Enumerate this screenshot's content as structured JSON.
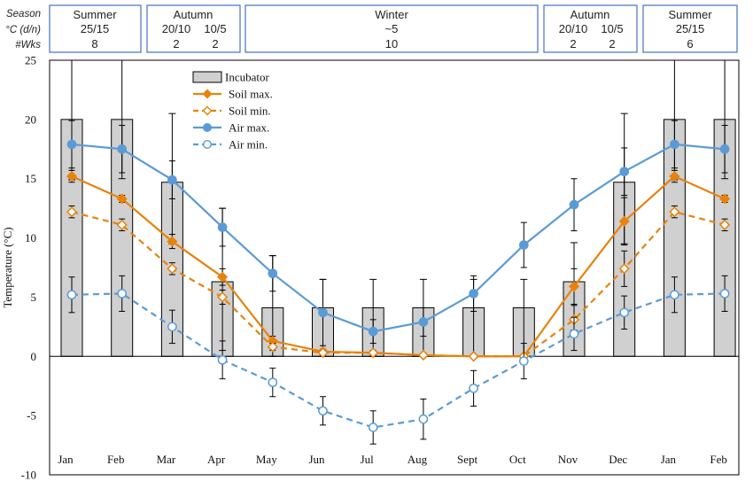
{
  "header": {
    "row_labels": [
      "Season",
      "°C (d/n)",
      "#Wks"
    ],
    "seasons": [
      {
        "name": "Summer",
        "temps": [
          "25/15"
        ],
        "weeks": [
          "8"
        ]
      },
      {
        "name": "Autumn",
        "temps": [
          "20/10",
          "10/5"
        ],
        "weeks": [
          "2",
          "2"
        ]
      },
      {
        "name": "Winter",
        "temps": [
          "~5"
        ],
        "weeks": [
          "10"
        ]
      },
      {
        "name": "Autumn",
        "temps": [
          "20/10",
          "10/5"
        ],
        "weeks": [
          "2",
          "2"
        ]
      },
      {
        "name": "Summer",
        "temps": [
          "25/15"
        ],
        "weeks": [
          "6"
        ]
      }
    ]
  },
  "colors": {
    "soil": "#E8820C",
    "air": "#5B9BD5",
    "bar_fill": "#D0D0D0",
    "border": "#4472C4"
  },
  "chart_data": {
    "type": "bar+line",
    "ylabel": "Temperature (°C)",
    "xlabel": "",
    "ylim": [
      -10,
      25
    ],
    "yticks": [
      -10,
      -5,
      0,
      5,
      10,
      15,
      20,
      25
    ],
    "categories": [
      "Jan",
      "Feb",
      "Mar",
      "Apr",
      "May",
      "Jun",
      "Jul",
      "Aug",
      "Sept",
      "Oct",
      "Nov",
      "Dec",
      "Jan",
      "Feb"
    ],
    "bars": {
      "name": "Incubator",
      "values": [
        20,
        20,
        14.7,
        6.3,
        4.1,
        4.1,
        4.1,
        4.1,
        4.1,
        4.1,
        6.3,
        14.7,
        20,
        20
      ],
      "err_high": [
        25,
        25,
        20.5,
        12.5,
        8.5,
        6.5,
        6.5,
        6.5,
        6.5,
        6.5,
        9.6,
        20.5,
        25,
        25
      ],
      "err_low": [
        14.9,
        15,
        9.5,
        0.5,
        0,
        0,
        0,
        0,
        0,
        0,
        2.2,
        9.5,
        14.9,
        15
      ]
    },
    "series": [
      {
        "name": "Soil max.",
        "style": "solid-filled-diamond",
        "values": [
          15.2,
          13.3,
          9.7,
          6.7,
          1.3,
          0.4,
          0.3,
          0.1,
          0.0,
          0.0,
          5.9,
          11.4,
          15.2,
          13.3
        ],
        "err": [
          0.5,
          0.3,
          0.6,
          0.7,
          0.4,
          0.2,
          0.2,
          0.1,
          0.1,
          0.1,
          1.5,
          2.0,
          0.5,
          0.3
        ]
      },
      {
        "name": "Soil min.",
        "style": "dashed-open-diamond",
        "values": [
          12.2,
          11.1,
          7.4,
          5.0,
          0.8,
          0.3,
          0.3,
          0.1,
          0.0,
          0.0,
          3.1,
          7.4,
          12.2,
          11.1
        ],
        "err": [
          0.5,
          0.5,
          0.5,
          0.6,
          0.3,
          0.2,
          0.2,
          0.1,
          0.1,
          0.1,
          1.2,
          1.5,
          0.5,
          0.5
        ]
      },
      {
        "name": "Air max.",
        "style": "solid-filled-circle",
        "values": [
          17.9,
          17.5,
          14.9,
          10.9,
          7.0,
          3.7,
          2.1,
          2.9,
          5.3,
          9.4,
          12.8,
          15.6,
          17.9,
          17.5
        ],
        "err": [
          2.0,
          2.0,
          1.6,
          1.6,
          1.5,
          2.8,
          1.0,
          1.2,
          1.5,
          1.9,
          2.2,
          2.0,
          2.0,
          2.0
        ]
      },
      {
        "name": "Air min.",
        "style": "dashed-open-circle",
        "values": [
          5.2,
          5.3,
          2.5,
          -0.3,
          -2.2,
          -4.6,
          -6.0,
          -5.3,
          -2.7,
          -0.4,
          1.9,
          3.7,
          5.2,
          5.3
        ],
        "err": [
          1.5,
          1.5,
          1.4,
          1.6,
          1.2,
          1.2,
          1.4,
          1.7,
          1.5,
          1.5,
          1.4,
          1.4,
          1.5,
          1.5
        ]
      }
    ],
    "legend": [
      "Incubator",
      "Soil max.",
      "Soil min.",
      "Air max.",
      "Air min."
    ]
  }
}
